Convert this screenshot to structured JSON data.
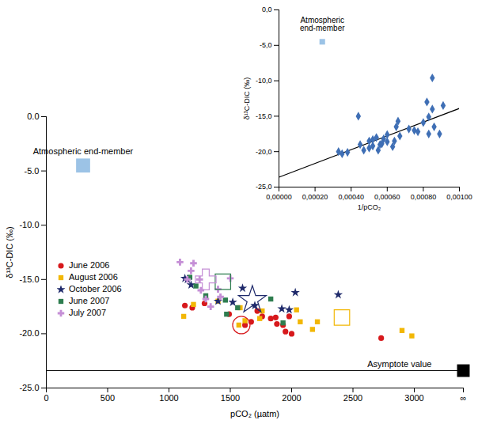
{
  "chart_data": [
    {
      "type": "scatter",
      "xlabel": "pCO₂ (µatm)",
      "ylabel": "δ¹³C-DIC (‰)",
      "xlim": [
        0,
        3400
      ],
      "xticks": [
        0,
        500,
        1000,
        1500,
        2000,
        2500,
        3000,
        {
          "value": 3400,
          "label": "∞"
        }
      ],
      "ylim": [
        -25,
        0
      ],
      "yticks": [
        {
          "value": 0,
          "label": "0.0"
        },
        {
          "value": -5,
          "label": "-5.0"
        },
        {
          "value": -10,
          "label": "-10.0"
        },
        {
          "value": -15,
          "label": "-15.0"
        },
        {
          "value": -20,
          "label": "-20.0"
        },
        {
          "value": -25,
          "label": "-25.0"
        }
      ],
      "grid": false,
      "legend": "left",
      "end_member": {
        "label": "Atmospheric end-member",
        "x": 300,
        "y": -4.5,
        "color": "#9cc3e6"
      },
      "asymptote": {
        "label": "Asymptote value",
        "y": -23.4
      },
      "series": [
        {
          "name": "June 2006",
          "color": "#d7191c",
          "marker": "circle",
          "x": [
            1130,
            1190,
            1290,
            1490,
            1620,
            1670,
            1720,
            1760,
            1830,
            1870,
            1880,
            1930,
            1950,
            1980,
            2000,
            2730
          ],
          "y": [
            -17.4,
            -17.6,
            -17.2,
            -18.2,
            -19.2,
            -18.9,
            -17.9,
            -18.4,
            -18.6,
            -18.5,
            -19.1,
            -19.2,
            -19.8,
            -18.4,
            -20.0,
            -20.4
          ],
          "mean": {
            "x": 1590,
            "y": -19.2
          }
        },
        {
          "name": "August 2006",
          "color": "#f2b705",
          "marker": "square",
          "x": [
            1120,
            1200,
            1400,
            1570,
            1580,
            1620,
            1740,
            1760,
            2040,
            2070,
            2170,
            2210,
            2900,
            2980
          ],
          "y": [
            -18.4,
            -17.3,
            -17.0,
            -19.2,
            -17.6,
            -18.8,
            -18.6,
            -17.9,
            -17.8,
            -18.9,
            -19.6,
            -18.9,
            -19.7,
            -20.2
          ],
          "mean": {
            "x": 2410,
            "y": -18.5
          }
        },
        {
          "name": "October 2006",
          "color": "#1f2a6b",
          "marker": "star",
          "x": [
            1130,
            1150,
            1180,
            1400,
            1520,
            1600,
            1700,
            1920,
            1980,
            2030,
            2380
          ],
          "y": [
            -14.9,
            -15.0,
            -15.5,
            -17.0,
            -17.1,
            -15.8,
            -17.4,
            -17.7,
            -17.8,
            -16.2,
            -16.4
          ],
          "mean": {
            "x": 1680,
            "y": -16.9
          }
        },
        {
          "name": "June 2007",
          "color": "#2e7d4f",
          "marker": "square",
          "x": [
            1170,
            1220,
            1300,
            1460,
            1470,
            1560,
            1830,
            1930
          ],
          "y": [
            -14.8,
            -15.6,
            -16.5,
            -16.9,
            -18.2,
            -17.6,
            -16.8,
            -19.0
          ],
          "mean": {
            "x": 1440,
            "y": -15.2
          }
        },
        {
          "name": "July 2007",
          "color": "#c58fd6",
          "marker": "cross",
          "x": [
            1090,
            1150,
            1180,
            1200,
            1250,
            1260,
            1300,
            1340,
            1400,
            1420,
            1500
          ],
          "y": [
            -13.4,
            -15.0,
            -14.2,
            -13.5,
            -15.0,
            -16.0,
            -16.8,
            -17.5,
            -15.9,
            -16.6,
            -14.9
          ],
          "mean": {
            "x": 1300,
            "y": -15.0
          }
        }
      ]
    },
    {
      "type": "scatter",
      "xlabel": "1/pCO₂",
      "ylabel": "δ¹³C-DIC (‰)",
      "xlim": [
        0,
        0.001
      ],
      "xticks": [
        {
          "value": 0,
          "label": "0,00000"
        },
        {
          "value": 0.0002,
          "label": "0,00020"
        },
        {
          "value": 0.0004,
          "label": "0,00040"
        },
        {
          "value": 0.0006,
          "label": "0,00060"
        },
        {
          "value": 0.0008,
          "label": "0,00080"
        },
        {
          "value": 0.001,
          "label": "0,00100"
        }
      ],
      "ylim": [
        -25,
        0
      ],
      "yticks": [
        {
          "value": 0,
          "label": "0,0"
        },
        {
          "value": -5,
          "label": "-5,0"
        },
        {
          "value": -10,
          "label": "-10,0"
        },
        {
          "value": -15,
          "label": "-15,0"
        },
        {
          "value": -20,
          "label": "-20,0"
        },
        {
          "value": -25,
          "label": "-25,0"
        }
      ],
      "grid": false,
      "end_member": {
        "label": "Atmospheric end-member",
        "x": 0.00024,
        "y": -4.5,
        "color": "#9cc3e6"
      },
      "trendline": {
        "x": [
          0,
          0.001
        ],
        "y": [
          -23.6,
          -13.9
        ]
      },
      "series": [
        {
          "color": "#3f6fb5",
          "marker": "diamond",
          "x": [
            0.00033,
            0.00035,
            0.00038,
            0.00044,
            0.00045,
            0.00047,
            0.0005,
            0.0005,
            0.00052,
            0.00052,
            0.00054,
            0.00055,
            0.00056,
            0.00057,
            0.00058,
            0.0006,
            0.0006,
            0.00063,
            0.00064,
            0.00065,
            0.00066,
            0.00067,
            0.00072,
            0.00075,
            0.00077,
            0.0008,
            0.00082,
            0.00083,
            0.00083,
            0.00085,
            0.00085,
            0.00086,
            0.00089,
            0.00091
          ],
          "y": [
            -20.0,
            -20.3,
            -20.1,
            -15.0,
            -19.0,
            -19.8,
            -19.5,
            -18.5,
            -18.3,
            -19.2,
            -18.0,
            -19.8,
            -19.0,
            -18.9,
            -18.2,
            -17.6,
            -18.6,
            -19.3,
            -18.5,
            -16.5,
            -15.7,
            -17.8,
            -16.8,
            -17.0,
            -17.2,
            -15.9,
            -13.0,
            -17.5,
            -15.1,
            -9.6,
            -14.0,
            -16.5,
            -17.5,
            -13.5
          ]
        }
      ]
    }
  ]
}
